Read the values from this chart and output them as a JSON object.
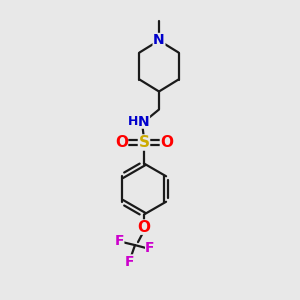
{
  "bg_color": "#e8e8e8",
  "bond_color": "#1a1a1a",
  "N_color": "#0000cc",
  "NH_color": "#0000cc",
  "S_color": "#ccaa00",
  "O_color": "#ff0000",
  "F_color": "#cc00cc",
  "line_width": 1.6,
  "figsize": [
    3.0,
    3.0
  ],
  "dpi": 100,
  "xlim": [
    0,
    10
  ],
  "ylim": [
    0,
    10
  ]
}
